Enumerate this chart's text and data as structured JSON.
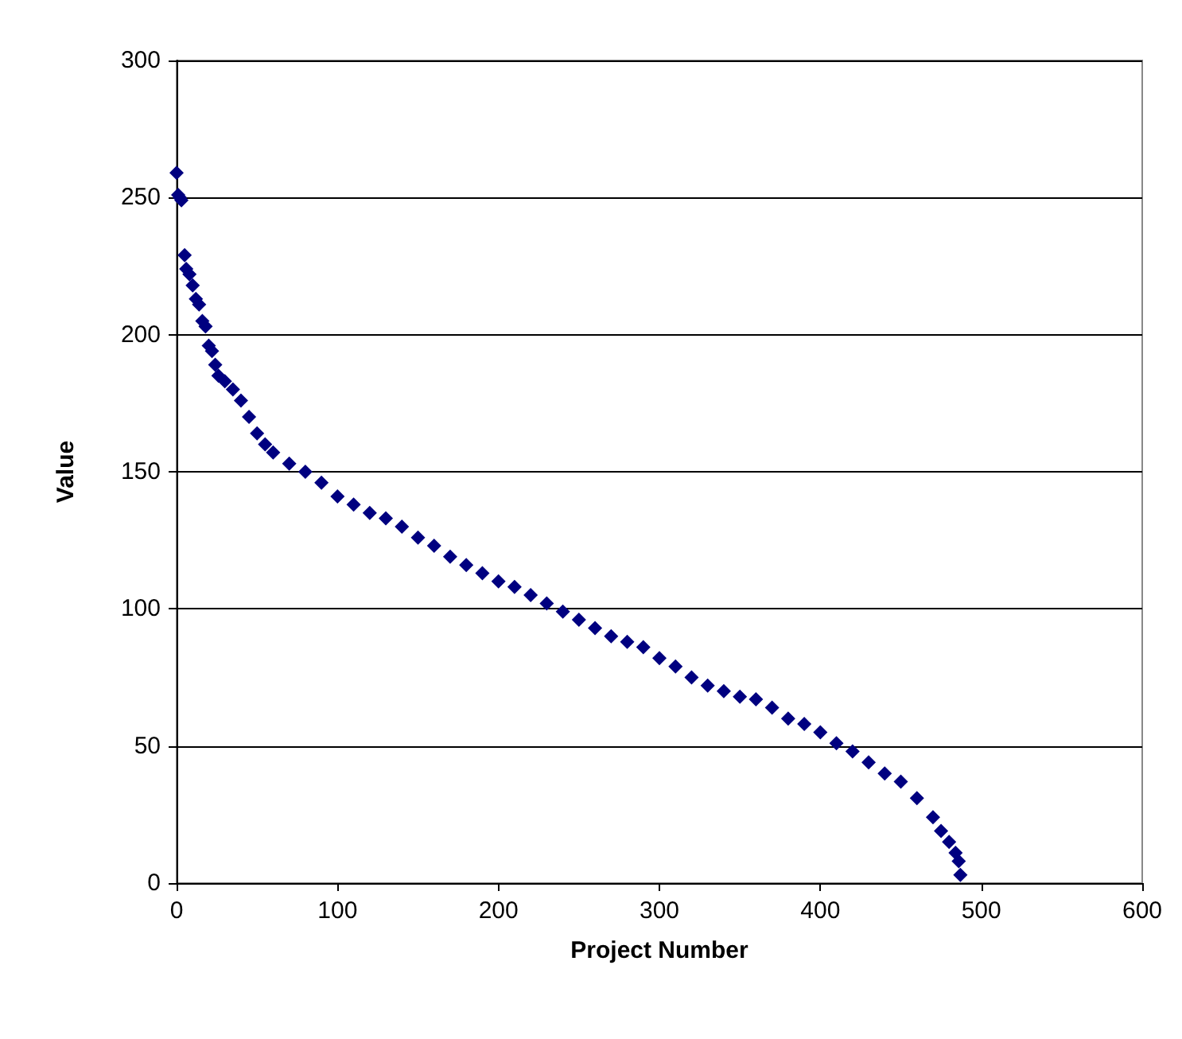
{
  "chart_data": {
    "type": "scatter",
    "xlabel": "Project Number",
    "ylabel": "Value",
    "xlim": [
      0,
      600
    ],
    "xticks": [
      0,
      100,
      200,
      300,
      400,
      500,
      600
    ],
    "ylim": [
      0,
      300
    ],
    "yticks": [
      0,
      50,
      100,
      150,
      200,
      250,
      300
    ],
    "grid": "y",
    "marker": "diamond",
    "series": [
      {
        "color": "#000080",
        "x": [
          0,
          1,
          2,
          3,
          5,
          6,
          8,
          10,
          12,
          14,
          16,
          18,
          20,
          22,
          24,
          26,
          30,
          35,
          40,
          45,
          50,
          55,
          60,
          70,
          80,
          90,
          100,
          110,
          120,
          130,
          140,
          150,
          160,
          170,
          180,
          190,
          200,
          210,
          220,
          230,
          240,
          250,
          260,
          270,
          280,
          290,
          300,
          310,
          320,
          330,
          340,
          350,
          360,
          370,
          380,
          390,
          400,
          410,
          420,
          430,
          440,
          450,
          460,
          470,
          475,
          480,
          484,
          486,
          487
        ],
        "values": [
          259,
          251,
          250,
          249,
          229,
          224,
          222,
          218,
          213,
          211,
          205,
          203,
          196,
          194,
          189,
          185,
          183,
          180,
          176,
          170,
          164,
          160,
          157,
          153,
          150,
          146,
          141,
          138,
          135,
          133,
          130,
          126,
          123,
          119,
          116,
          113,
          110,
          108,
          105,
          102,
          99,
          96,
          93,
          90,
          88,
          86,
          82,
          79,
          75,
          72,
          70,
          68,
          67,
          64,
          60,
          58,
          55,
          51,
          48,
          44,
          40,
          37,
          31,
          24,
          19,
          15,
          11,
          8,
          3
        ]
      }
    ]
  }
}
